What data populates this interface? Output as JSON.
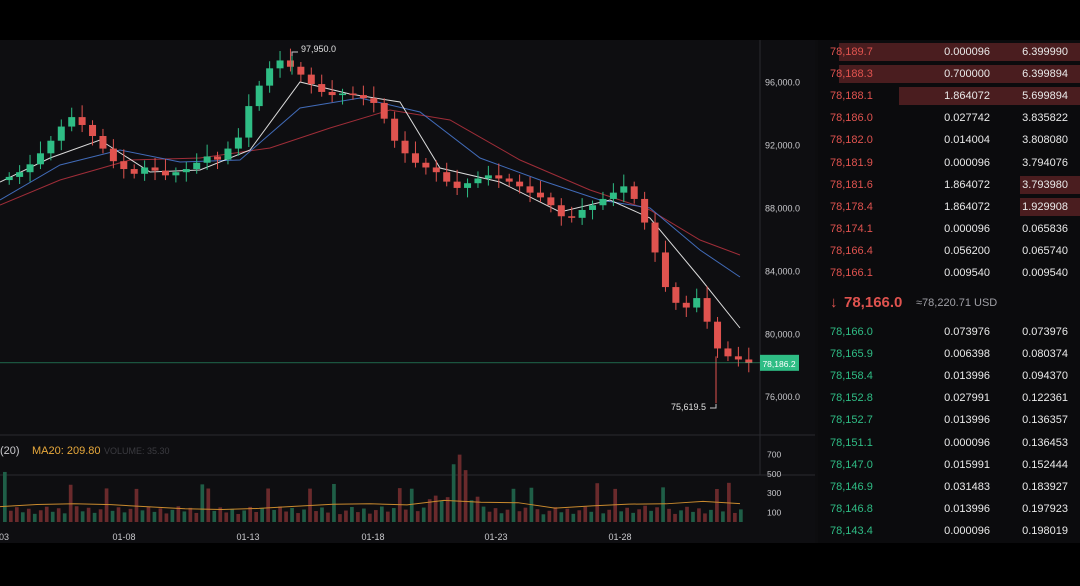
{
  "chart_data": {
    "type": "candlestick",
    "price_axis": {
      "ticks": [
        "96,000.0",
        "92,000.0",
        "88,000.0",
        "84,000.0",
        "80,000.0",
        "76,000.0"
      ],
      "range": [
        73600,
        98700
      ]
    },
    "x_ticks": [
      "03",
      "01-08",
      "01-13",
      "01-18",
      "01-23",
      "01-28"
    ],
    "high_label": "97,950.0",
    "low_label": "75,619.5",
    "last_price_tag": "78,186.2",
    "volume_legend": {
      "period": "(20)",
      "ma_label": "MA20: 209.80",
      "faded": "VOLUME: 35.30"
    },
    "volume_ticks": [
      "700",
      "500",
      "300",
      "100"
    ],
    "volume_range": [
      0,
      800
    ],
    "colors": {
      "up": "#2fbd85",
      "down": "#e0534f",
      "ma_fast": "#ffffff",
      "ma_mid": "#4a7bd6",
      "ma_slow": "#b8323f",
      "vol_ma": "#c98a2e"
    },
    "close_path": [
      90000,
      90300,
      90800,
      91500,
      92300,
      93200,
      93800,
      93300,
      92600,
      91800,
      91000,
      90500,
      90200,
      90600,
      90400,
      90100,
      90300,
      90500,
      90900,
      91300,
      91100,
      91800,
      92500,
      94500,
      95800,
      96900,
      97400,
      97000,
      96500,
      95900,
      95400,
      95200,
      95300,
      95200,
      95000,
      94700,
      93700,
      92300,
      91500,
      90900,
      90600,
      90300,
      89700,
      89300,
      89600,
      89900,
      90100,
      89900,
      89700,
      89400,
      89000,
      88700,
      88200,
      87500,
      87400,
      87900,
      88200,
      88600,
      89000,
      89400,
      88600,
      87100,
      85200,
      83000,
      82000,
      81700,
      82300,
      80800,
      79100,
      78600,
      78400,
      78186
    ]
  },
  "orderbook": {
    "asks": [
      {
        "price": "78,189.7",
        "amount": "0.000096",
        "total": "6.399990",
        "depth": 0.92
      },
      {
        "price": "78,188.3",
        "amount": "0.700000",
        "total": "6.399894",
        "depth": 0.92
      },
      {
        "price": "78,188.1",
        "amount": "1.864072",
        "total": "5.699894",
        "depth": 0.69
      },
      {
        "price": "78,186.0",
        "amount": "0.027742",
        "total": "3.835822",
        "depth": 0.0
      },
      {
        "price": "78,182.0",
        "amount": "0.014004",
        "total": "3.808080",
        "depth": 0.0
      },
      {
        "price": "78,181.9",
        "amount": "0.000096",
        "total": "3.794076",
        "depth": 0.0
      },
      {
        "price": "78,181.6",
        "amount": "1.864072",
        "total": "3.793980",
        "depth": 0.23
      },
      {
        "price": "78,178.4",
        "amount": "1.864072",
        "total": "1.929908",
        "depth": 0.23
      },
      {
        "price": "78,174.1",
        "amount": "0.000096",
        "total": "0.065836",
        "depth": 0.0
      },
      {
        "price": "78,166.4",
        "amount": "0.056200",
        "total": "0.065740",
        "depth": 0.0
      },
      {
        "price": "78,166.1",
        "amount": "0.009540",
        "total": "0.009540",
        "depth": 0.0
      }
    ],
    "mid": {
      "arrow": "↓",
      "price": "78,166.0",
      "usd": "≈78,220.71 USD"
    },
    "bids": [
      {
        "price": "78,166.0",
        "amount": "0.073976",
        "total": "0.073976"
      },
      {
        "price": "78,165.9",
        "amount": "0.006398",
        "total": "0.080374"
      },
      {
        "price": "78,158.4",
        "amount": "0.013996",
        "total": "0.094370"
      },
      {
        "price": "78,152.8",
        "amount": "0.027991",
        "total": "0.122361"
      },
      {
        "price": "78,152.7",
        "amount": "0.013996",
        "total": "0.136357"
      },
      {
        "price": "78,151.1",
        "amount": "0.000096",
        "total": "0.136453"
      },
      {
        "price": "78,147.0",
        "amount": "0.015991",
        "total": "0.152444"
      },
      {
        "price": "78,146.9",
        "amount": "0.031483",
        "total": "0.183927"
      },
      {
        "price": "78,146.8",
        "amount": "0.013996",
        "total": "0.197923"
      },
      {
        "price": "78,143.4",
        "amount": "0.000096",
        "total": "0.198019"
      }
    ]
  }
}
